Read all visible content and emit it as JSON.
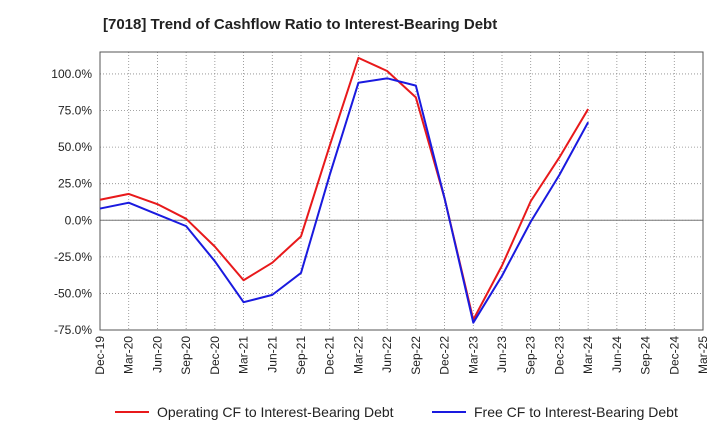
{
  "title": "[7018]  Trend of Cashflow Ratio to Interest-Bearing Debt",
  "chart_data": {
    "type": "line",
    "title": "[7018]  Trend of Cashflow Ratio to Interest-Bearing Debt",
    "xlabel": "",
    "ylabel": "",
    "x": [
      "Dec-19",
      "Mar-20",
      "Jun-20",
      "Sep-20",
      "Dec-20",
      "Mar-21",
      "Jun-21",
      "Sep-21",
      "Dec-21",
      "Mar-22",
      "Jun-22",
      "Sep-22",
      "Dec-22",
      "Mar-23",
      "Jun-23",
      "Sep-23",
      "Dec-23",
      "Mar-24",
      "Jun-24",
      "Sep-24",
      "Dec-24",
      "Mar-25"
    ],
    "ylim": [
      -75,
      115
    ],
    "yticks": [
      -75,
      -50,
      -25,
      0,
      25,
      50,
      75,
      100
    ],
    "ytick_labels": [
      "-75.0%",
      "-50.0%",
      "-25.0%",
      "0.0%",
      "25.0%",
      "50.0%",
      "75.0%",
      "100.0%"
    ],
    "grid": true,
    "legend_position": "bottom",
    "series": [
      {
        "name": "Operating CF to Interest-Bearing Debt",
        "color": "#e8191b",
        "values": [
          14,
          18,
          11,
          1,
          -18,
          -41,
          -29,
          -11,
          51,
          111,
          102,
          84,
          15,
          -68,
          -31,
          13,
          43,
          76,
          null,
          null,
          null,
          null
        ]
      },
      {
        "name": "Free CF to Interest-Bearing Debt",
        "color": "#1a1adf",
        "values": [
          8,
          12,
          4,
          -4,
          -28,
          -56,
          -51,
          -36,
          31,
          94,
          97,
          92,
          15,
          -70,
          -38,
          -1,
          31,
          67,
          null,
          null,
          null,
          null
        ]
      }
    ]
  }
}
